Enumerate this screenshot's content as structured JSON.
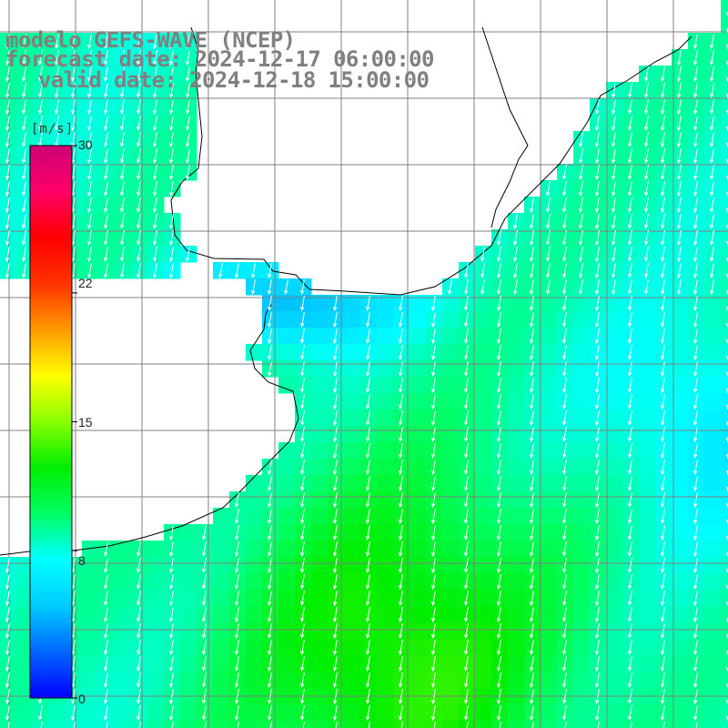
{
  "title": {
    "model": "modelo GEFS-WAVE (NCEP)",
    "forecast": "forecast date: 2024-12-17 06:00:00",
    "valid": "valid date: 2024-12-18 15:00:00"
  },
  "colorbar": {
    "unit": "[m/s]",
    "min": 0,
    "max": 30,
    "ticks": [
      "30",
      "22",
      "15",
      "8",
      "0"
    ],
    "tick_values": [
      30,
      22,
      15,
      8,
      0
    ],
    "colors": [
      "#0000ff",
      "#0066ff",
      "#00ccff",
      "#00ffff",
      "#00ff66",
      "#00ee00",
      "#88ff00",
      "#ffff00",
      "#ff9900",
      "#ff3300",
      "#ff0000",
      "#ff0066",
      "#cc0077"
    ]
  },
  "map": {
    "variable": "wind speed and direction",
    "dominant_direction": "from north (arrows pointing south-southwest)",
    "land_color": "#ffffff",
    "coastline_color": "#000000",
    "grid_color": "#808080",
    "arrow_color": "#ffffff",
    "ocean_speed_range_ms": [
      3,
      13
    ]
  }
}
